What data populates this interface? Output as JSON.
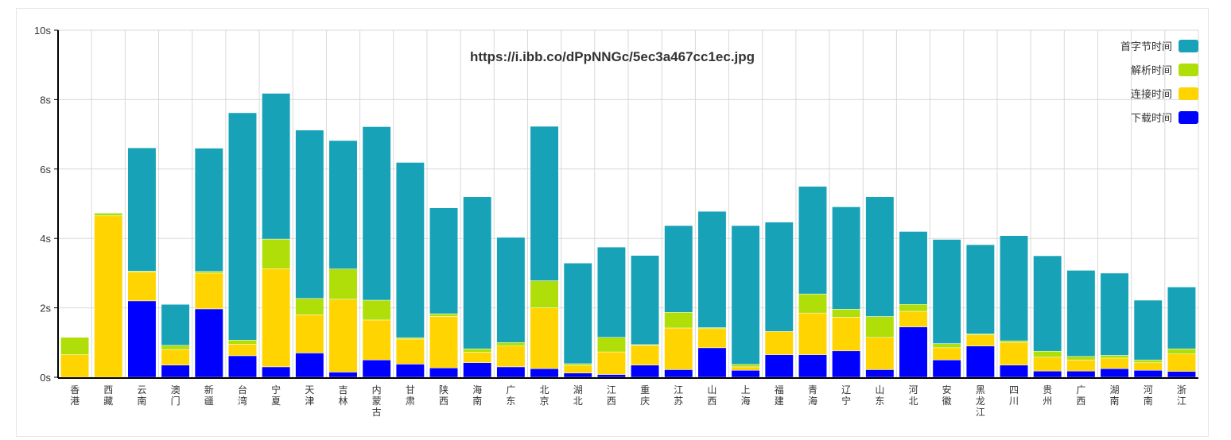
{
  "chart_data": {
    "type": "bar",
    "stacked": true,
    "title": "https://i.ibb.co/dPpNNGc/5ec3a467cc1ec.jpg",
    "ylim": [
      0,
      10
    ],
    "yticks": [
      0,
      2,
      4,
      6,
      8,
      10
    ],
    "ytick_labels": [
      "0s",
      "2s",
      "4s",
      "6s",
      "8s",
      "10s"
    ],
    "grid": true,
    "legend_position": "top-right",
    "categories": [
      "香港",
      "西藏",
      "云南",
      "澳门",
      "新疆",
      "台湾",
      "宁夏",
      "天津",
      "吉林",
      "内蒙古",
      "甘肃",
      "陕西",
      "海南",
      "广东",
      "北京",
      "湖北",
      "江西",
      "重庆",
      "江苏",
      "山西",
      "上海",
      "福建",
      "青海",
      "辽宁",
      "山东",
      "河北",
      "安徽",
      "黑龙江",
      "四川",
      "贵州",
      "广西",
      "湖南",
      "河南",
      "浙江"
    ],
    "series": [
      {
        "name": "下载时间",
        "color": "#0000ff",
        "values": [
          0.0,
          0.0,
          2.2,
          0.35,
          1.97,
          0.62,
          0.3,
          0.7,
          0.15,
          0.5,
          0.38,
          0.27,
          0.42,
          0.3,
          0.25,
          0.12,
          0.08,
          0.35,
          0.22,
          0.85,
          0.2,
          0.65,
          0.65,
          0.76,
          0.22,
          1.45,
          0.5,
          0.9,
          0.35,
          0.18,
          0.18,
          0.25,
          0.2,
          0.17
        ]
      },
      {
        "name": "连接时间",
        "color": "#ffd400",
        "values": [
          0.65,
          4.65,
          0.83,
          0.45,
          1.03,
          0.33,
          2.83,
          1.1,
          2.1,
          1.15,
          0.72,
          1.48,
          0.3,
          0.6,
          1.75,
          0.22,
          0.65,
          0.57,
          1.2,
          0.55,
          0.1,
          0.67,
          1.2,
          0.97,
          0.93,
          0.45,
          0.35,
          0.32,
          0.65,
          0.4,
          0.32,
          0.3,
          0.22,
          0.5
        ]
      },
      {
        "name": "解析时间",
        "color": "#b0de09",
        "values": [
          0.5,
          0.08,
          0.03,
          0.12,
          0.05,
          0.12,
          0.85,
          0.47,
          0.87,
          0.57,
          0.04,
          0.08,
          0.1,
          0.1,
          0.78,
          0.05,
          0.42,
          0.02,
          0.45,
          0.03,
          0.07,
          0.0,
          0.55,
          0.23,
          0.6,
          0.2,
          0.12,
          0.03,
          0.05,
          0.17,
          0.1,
          0.08,
          0.08,
          0.15
        ]
      },
      {
        "name": "首字节时间",
        "color": "#18a2b8",
        "values": [
          0.0,
          0.0,
          3.55,
          1.18,
          3.55,
          6.55,
          4.2,
          4.85,
          3.7,
          5.0,
          5.05,
          3.05,
          4.38,
          3.03,
          4.45,
          2.9,
          2.6,
          2.57,
          2.5,
          3.35,
          4.0,
          3.15,
          3.1,
          2.95,
          3.45,
          2.1,
          3.0,
          2.57,
          3.03,
          2.75,
          2.48,
          2.37,
          1.72,
          1.78
        ]
      }
    ]
  }
}
